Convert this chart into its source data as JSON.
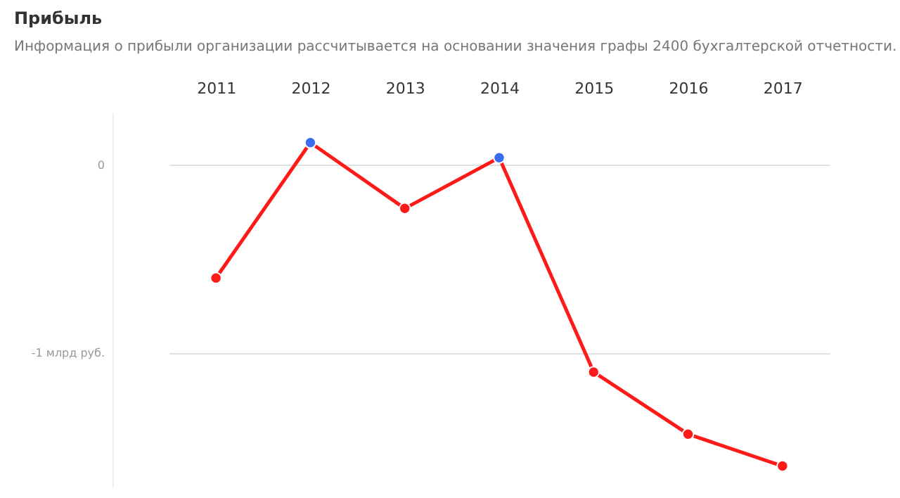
{
  "chart_data": {
    "type": "line",
    "title": "Прибыль",
    "subtitle": "Информация о прибыли организации рассчитывается на основании значения графы 2400 бухгалтерской отчетности.",
    "categories": [
      "2011",
      "2012",
      "2013",
      "2014",
      "2015",
      "2016",
      "2017"
    ],
    "series": [
      {
        "color": "#ff1a1a",
        "colors": [
          "#ff1a1a",
          "#3b6cf0",
          "#ff1a1a",
          "#3b6cf0",
          "#ff1a1a",
          "#ff1a1a",
          "#ff1a1a"
        ],
        "values": [
          -0.6,
          0.12,
          -0.23,
          0.04,
          -1.1,
          -1.43,
          -1.6
        ]
      }
    ],
    "ylim": [
      -1.71,
      0.28
    ],
    "yticks": [
      {
        "value": 0,
        "label": "0"
      },
      {
        "value": -1,
        "label": "-1 млрд руб."
      }
    ],
    "grid": "y",
    "marker": "circle",
    "line_style": "solid"
  }
}
